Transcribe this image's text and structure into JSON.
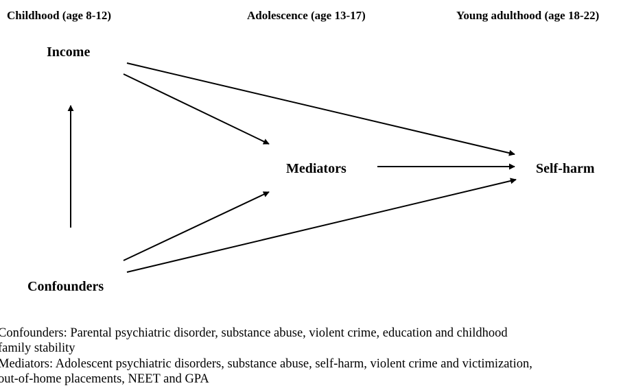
{
  "headers": [
    "Childhood (age 8-12)",
    "Adolescence (age 13-17)",
    "Young adulthood (age 18-22)"
  ],
  "nodes": [
    {
      "label": "Income"
    },
    {
      "label": "Mediators"
    },
    {
      "label": "Self-harm"
    },
    {
      "label": "Confounders"
    }
  ],
  "notes": [
    [
      "Confounders: Parental psychiatric disorder, substance abuse, violent crime, education and childhood",
      "family stability"
    ],
    [
      "Mediators: Adolescent psychiatric disorders, substance abuse, self-harm, violent crime and victimization,",
      "out-of-home placements, NEET and GPA"
    ]
  ]
}
